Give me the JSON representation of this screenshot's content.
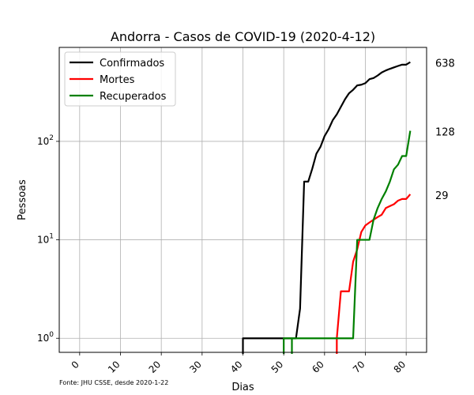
{
  "chart_data": {
    "type": "line",
    "title": "Andorra - Casos de COVID-19 (2020-4-12)",
    "xlabel": "Dias",
    "ylabel": "Pessoas",
    "yscale": "log",
    "xlim": [
      -5,
      85
    ],
    "ylim": [
      0.72,
      900
    ],
    "x_ticks": [
      0,
      10,
      20,
      30,
      40,
      50,
      60,
      70,
      80
    ],
    "y_ticks": [
      {
        "value": 1,
        "base": "10",
        "exp": "0"
      },
      {
        "value": 10,
        "base": "10",
        "exp": "1"
      },
      {
        "value": 100,
        "base": "10",
        "exp": "2"
      }
    ],
    "grid": true,
    "legend_position": "top-left",
    "source": "Fonte: JHU CSSE, desde 2020-1-22",
    "series": [
      {
        "name": "Confirmados",
        "color": "#000000",
        "end_label": "638",
        "x": [
          40,
          41,
          42,
          43,
          44,
          45,
          46,
          47,
          48,
          49,
          50,
          51,
          52,
          53,
          54,
          55,
          56,
          57,
          58,
          59,
          60,
          61,
          62,
          63,
          64,
          65,
          66,
          67,
          68,
          69,
          70,
          71,
          72,
          73,
          74,
          75,
          76,
          77,
          78,
          79,
          80,
          81
        ],
        "y": [
          1,
          1,
          1,
          1,
          1,
          1,
          1,
          1,
          1,
          1,
          1,
          1,
          1,
          1,
          2,
          39,
          39,
          53,
          75,
          88,
          113,
          133,
          164,
          188,
          224,
          267,
          308,
          334,
          370,
          376,
          390,
          428,
          439,
          466,
          501,
          525,
          545,
          564,
          583,
          601,
          601,
          638
        ]
      },
      {
        "name": "Mortes",
        "color": "#ff0000",
        "end_label": "29",
        "x": [
          63,
          64,
          65,
          66,
          67,
          68,
          69,
          70,
          71,
          72,
          73,
          74,
          75,
          76,
          77,
          78,
          79,
          80,
          81
        ],
        "y": [
          1,
          3,
          3,
          3,
          6,
          8,
          12,
          14,
          15,
          16,
          17,
          18,
          21,
          22,
          23,
          25,
          26,
          26,
          29
        ]
      },
      {
        "name": "Recuperados",
        "color": "#008000",
        "end_label": "128",
        "x": [
          52,
          53,
          54,
          55,
          56,
          57,
          58,
          59,
          60,
          61,
          62,
          63,
          64,
          65,
          66,
          67,
          68,
          69,
          70,
          71,
          72,
          73,
          74,
          75,
          76,
          77,
          78,
          79,
          80,
          81
        ],
        "y": [
          1,
          1,
          1,
          1,
          1,
          1,
          1,
          1,
          1,
          1,
          1,
          1,
          1,
          1,
          1,
          1,
          10,
          10,
          10,
          10,
          16,
          21,
          26,
          31,
          39,
          52,
          58,
          71,
          71,
          128
        ]
      }
    ]
  }
}
